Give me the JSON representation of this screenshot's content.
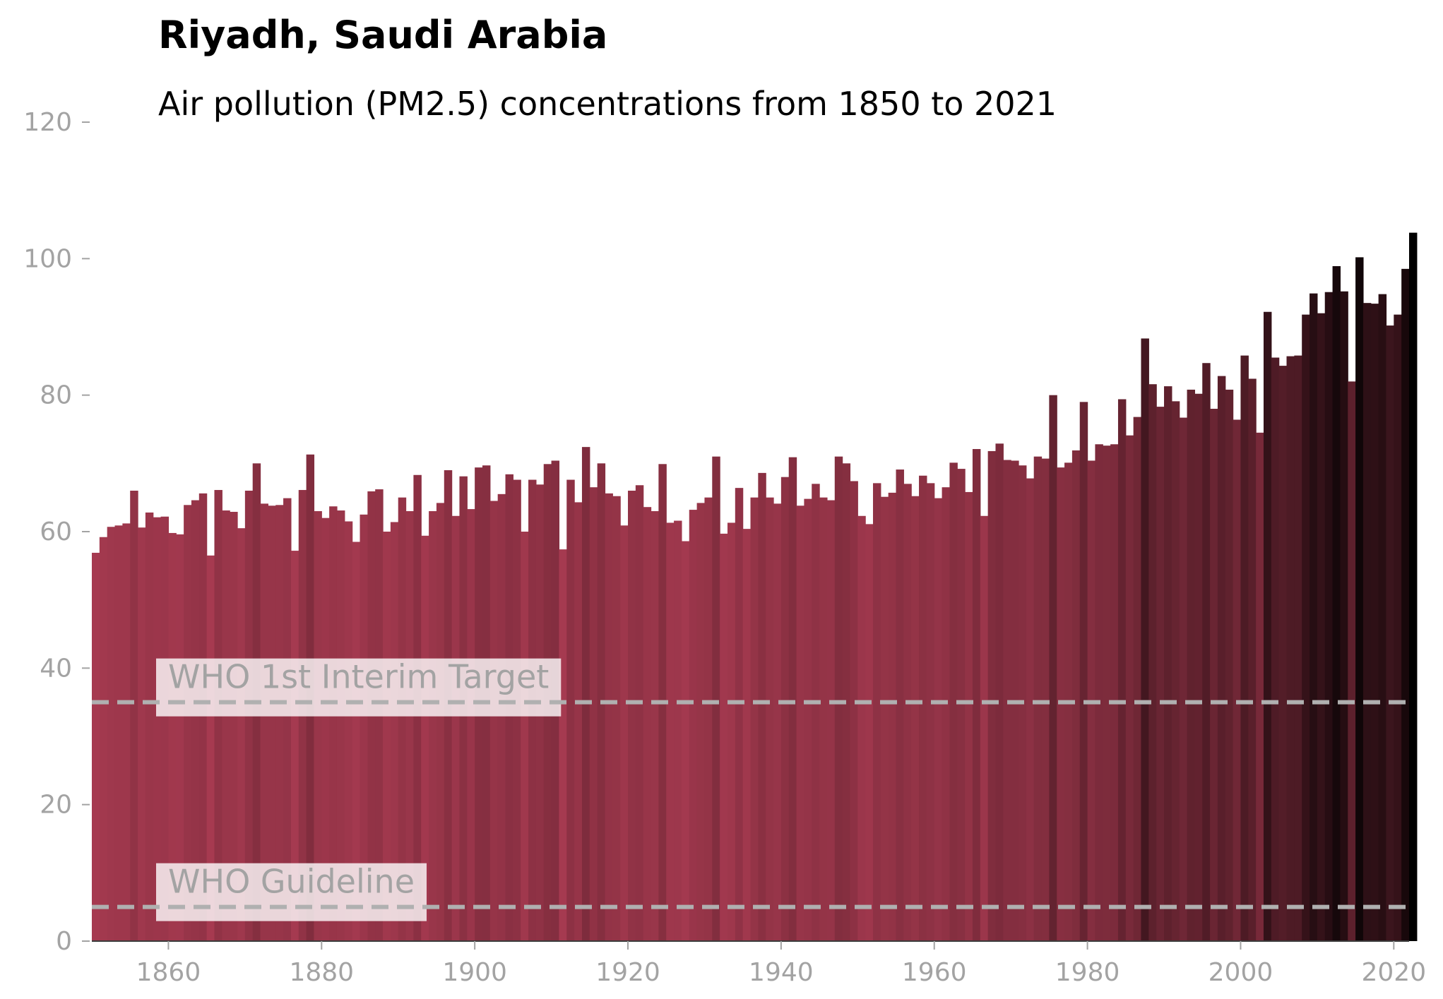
{
  "chart_data": {
    "type": "bar",
    "title": "Riyadh, Saudi Arabia",
    "subtitle": "Air pollution (PM2.5) concentrations from 1850 to 2021",
    "xlabel": "",
    "ylabel": "",
    "xlim": [
      1850,
      2022
    ],
    "ylim": [
      0,
      120
    ],
    "x_ticks": [
      1860,
      1880,
      1900,
      1920,
      1940,
      1960,
      1980,
      2000,
      2020
    ],
    "y_ticks": [
      0,
      20,
      40,
      60,
      80,
      100,
      120
    ],
    "grid": false,
    "legend": "none",
    "x_start": 1850,
    "values": [
      56.9,
      59.2,
      60.7,
      60.9,
      61.2,
      66.0,
      60.6,
      62.8,
      62.1,
      62.2,
      59.8,
      59.6,
      63.9,
      64.6,
      65.6,
      56.5,
      66.1,
      63.1,
      62.9,
      60.5,
      66.0,
      70.0,
      64.1,
      63.8,
      63.9,
      64.9,
      57.2,
      66.1,
      71.3,
      63.0,
      62.0,
      63.7,
      63.1,
      61.5,
      58.5,
      62.5,
      65.9,
      66.2,
      60.0,
      61.4,
      65.0,
      63.0,
      68.3,
      59.4,
      63.0,
      64.2,
      69.0,
      62.3,
      68.1,
      63.3,
      69.4,
      69.7,
      64.5,
      65.5,
      68.4,
      67.6,
      60.0,
      67.6,
      66.9,
      69.9,
      70.4,
      57.4,
      67.6,
      64.3,
      72.4,
      66.5,
      70.0,
      65.6,
      65.2,
      60.9,
      66.0,
      66.8,
      63.6,
      63.0,
      69.9,
      61.3,
      61.6,
      58.6,
      63.2,
      64.2,
      65.0,
      71.0,
      59.7,
      61.3,
      66.4,
      60.4,
      65.0,
      68.6,
      65.0,
      64.1,
      68.0,
      70.9,
      63.8,
      64.8,
      67.0,
      65.0,
      64.6,
      71.0,
      70.0,
      67.4,
      62.3,
      61.1,
      67.1,
      65.1,
      65.7,
      69.1,
      67.0,
      65.2,
      68.2,
      67.1,
      64.9,
      66.5,
      70.1,
      69.2,
      65.8,
      72.1,
      62.3,
      71.8,
      72.9,
      70.5,
      70.4,
      69.7,
      67.8,
      71.0,
      70.7,
      80.0,
      69.4,
      70.1,
      71.9,
      79.0,
      70.4,
      72.8,
      72.6,
      72.8,
      79.4,
      74.1,
      76.8,
      88.3,
      81.6,
      78.3,
      81.3,
      79.1,
      76.7,
      80.8,
      80.2,
      84.7,
      78.0,
      82.8,
      80.8,
      76.4,
      85.8,
      82.4,
      74.5,
      92.2,
      85.5,
      84.3,
      85.7,
      85.8,
      91.8,
      94.9,
      92.0,
      95.1,
      98.9,
      95.2,
      82.0,
      100.2,
      93.5,
      93.4,
      94.8,
      90.2,
      91.8,
      98.5,
      103.8
    ],
    "reference_lines": [
      {
        "label": "WHO 1st Interim Target",
        "value": 35
      },
      {
        "label": "WHO Guideline",
        "value": 5
      }
    ],
    "colors": {
      "low": "#a63a50",
      "high": "#000000",
      "tick_text": "#a3a3a3",
      "axis": "#3c3c3c",
      "reference_line": "#b0b0b0",
      "label_box": "#ffffff"
    }
  }
}
